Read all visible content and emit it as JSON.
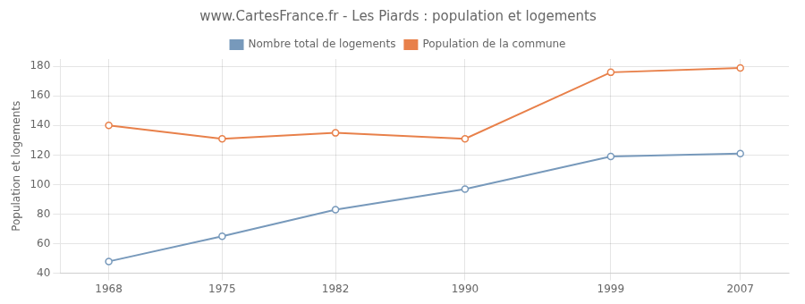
{
  "chart_data": {
    "type": "line",
    "title": "www.CartesFrance.fr - Les Piards : population et logements",
    "ylabel": "Population et logements",
    "x": [
      1968,
      1975,
      1982,
      1990,
      1999,
      2007
    ],
    "series": [
      {
        "name": "Nombre total de logements",
        "color": "#7799bb",
        "marker": "o",
        "values": [
          48,
          65,
          83,
          97,
          119,
          121
        ]
      },
      {
        "name": "Population de la commune",
        "color": "#e8804a",
        "marker": "o",
        "values": [
          140,
          131,
          135,
          131,
          176,
          179
        ]
      }
    ],
    "xlim": [
      1965,
      2010
    ],
    "xticks": [
      1968,
      1975,
      1982,
      1990,
      1999,
      2007
    ],
    "ylim": [
      40,
      185
    ],
    "yticks": [
      40,
      60,
      80,
      100,
      120,
      140,
      160,
      180
    ],
    "grid": true,
    "legend": "top"
  }
}
